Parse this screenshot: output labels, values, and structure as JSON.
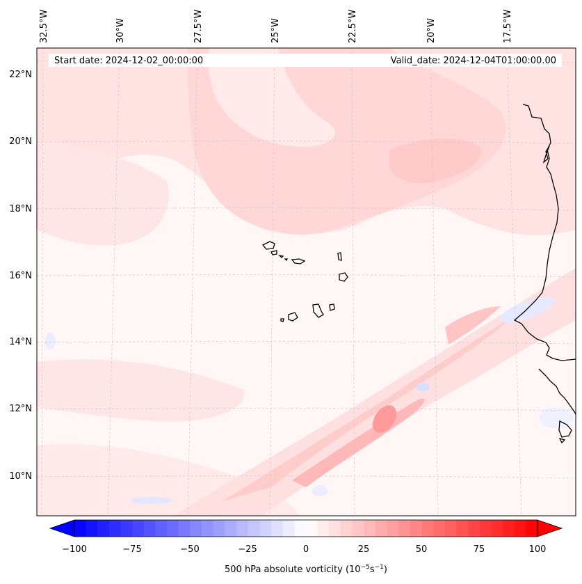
{
  "header": {
    "start_date": "Start date: 2024-12-02_00:00:00",
    "valid_date": "Valid_date: 2024-12-04T01:00:00.00"
  },
  "lon_labels": [
    "32.5°W",
    "30°W",
    "27.5°W",
    "25°W",
    "22.5°W",
    "20°W",
    "17.5°W"
  ],
  "lat_labels": [
    "22°N",
    "20°N",
    "18°N",
    "16°N",
    "14°N",
    "12°N",
    "10°N"
  ],
  "colorbar": {
    "ticks": [
      "−100",
      "−75",
      "−50",
      "−25",
      "0",
      "25",
      "50",
      "75",
      "100"
    ],
    "label": "500 hPa absolute vorticity (10",
    "label_exp1": "−5",
    "label_mid": "s",
    "label_exp2": "−1",
    "label_end": ")",
    "min": -100,
    "max": 100,
    "n_levels": 40,
    "neg_color": "#0000ff",
    "mid_color": "#ffffff",
    "pos_color": "#ff0000"
  },
  "colors": {
    "background_field": "#fff5f5",
    "coastline": "#000000",
    "gridline": "#bbbbbb"
  }
}
